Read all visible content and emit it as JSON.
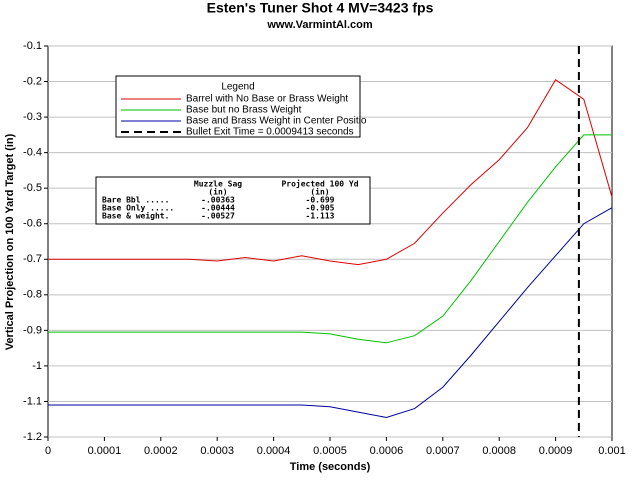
{
  "chart_data": {
    "type": "line",
    "title": "Esten's Tuner Shot 4 MV=3423 fps",
    "subtitle": "www.VarmintAl.com",
    "x_label": "Time (seconds)",
    "y_label": "Vertical Projection on 100 Yard Target (in)",
    "legend_title": "Legend",
    "x": [
      0,
      5e-05,
      0.0001,
      0.00015,
      0.0002,
      0.00025,
      0.0003,
      0.00035,
      0.0004,
      0.00045,
      0.0005,
      0.00055,
      0.0006,
      0.00065,
      0.0007,
      0.00075,
      0.0008,
      0.00085,
      0.0009,
      0.00095,
      0.001
    ],
    "series": [
      {
        "name": "Barrel with No Base or Brass Weight",
        "color": "#e00000",
        "values": [
          -0.7,
          -0.7,
          -0.7,
          -0.7,
          -0.7,
          -0.7,
          -0.705,
          -0.695,
          -0.705,
          -0.69,
          -0.705,
          -0.715,
          -0.7,
          -0.655,
          -0.57,
          -0.49,
          -0.42,
          -0.33,
          -0.195,
          -0.25,
          -0.525
        ]
      },
      {
        "name": "Base but no Brass Weight",
        "color": "#00c000",
        "values": [
          -0.905,
          -0.905,
          -0.905,
          -0.905,
          -0.905,
          -0.905,
          -0.905,
          -0.905,
          -0.905,
          -0.905,
          -0.91,
          -0.925,
          -0.935,
          -0.915,
          -0.86,
          -0.76,
          -0.65,
          -0.54,
          -0.44,
          -0.35,
          -0.35
        ]
      },
      {
        "name": "Base and Brass Weight in Center Positio",
        "color": "#0000a0",
        "values": [
          -1.11,
          -1.11,
          -1.11,
          -1.11,
          -1.11,
          -1.11,
          -1.11,
          -1.11,
          -1.11,
          -1.11,
          -1.115,
          -1.13,
          -1.145,
          -1.12,
          -1.06,
          -0.97,
          -0.875,
          -0.78,
          -0.69,
          -0.6,
          -0.555
        ]
      }
    ],
    "vline": {
      "name": "Bullet Exit Time = 0.0009413 seconds",
      "x": 0.0009413,
      "color": "#000000"
    },
    "xlim": [
      0,
      0.001
    ],
    "ylim": [
      -1.2,
      -0.1
    ],
    "xticks": [
      0,
      0.0001,
      0.0002,
      0.0003,
      0.0004,
      0.0005,
      0.0006,
      0.0007,
      0.0008,
      0.0009,
      0.001
    ],
    "yticks": [
      -0.1,
      -0.2,
      -0.3,
      -0.4,
      -0.5,
      -0.6,
      -0.7,
      -0.8,
      -0.9,
      -1,
      -1.1,
      -1.2
    ],
    "table": {
      "header": [
        "Muzzle Sag",
        "Projected 100 Yd"
      ],
      "units": [
        "(in)",
        "(in)"
      ],
      "rows": [
        [
          "Bare Bbl .....",
          "-.00363",
          "-0.699"
        ],
        [
          "Base Only .....",
          "-.00444",
          "-0.905"
        ],
        [
          "Base & weight.",
          "-.00527",
          "-1.113"
        ]
      ]
    }
  }
}
